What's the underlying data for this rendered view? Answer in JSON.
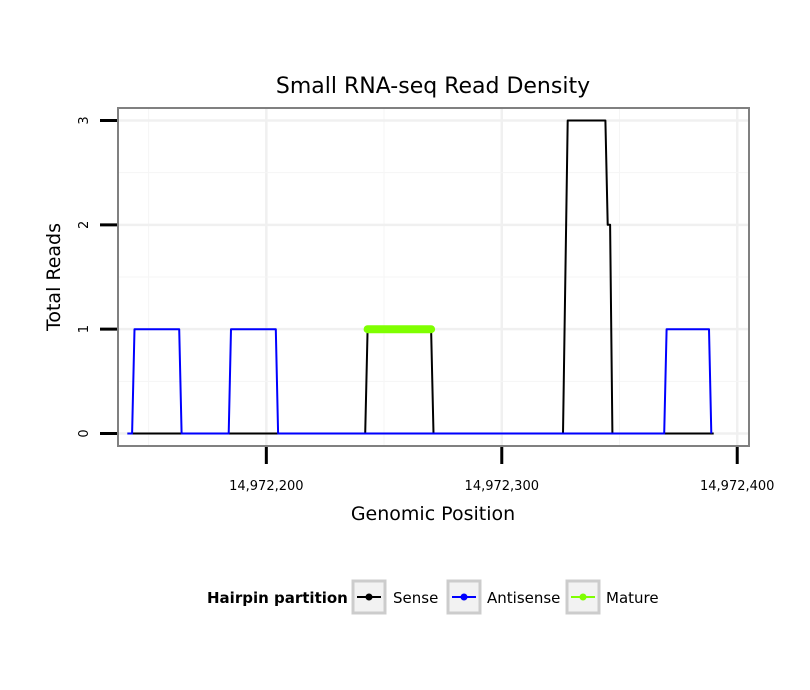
{
  "chart_data": {
    "type": "line",
    "title": "Small RNA-seq Read Density",
    "xlabel": "Genomic Position",
    "ylabel": "Total Reads",
    "xlim": [
      14972137,
      14972405
    ],
    "ylim": [
      -0.12,
      3.12
    ],
    "xticks": [
      14972200,
      14972300,
      14972400
    ],
    "xtick_labels": [
      "14,972,200",
      "14,972,300",
      "14,972,400"
    ],
    "yticks": [
      0,
      1,
      2,
      3
    ],
    "ytick_labels": [
      "0",
      "1",
      "2",
      "3"
    ],
    "grid": true,
    "legend": {
      "title": "Hairpin partition",
      "position": "bottom",
      "entries": [
        "Sense",
        "Antisense",
        "Mature"
      ]
    },
    "series": [
      {
        "name": "Sense",
        "color": "#000000",
        "x": [
          14972141,
          14972242,
          14972243,
          14972270,
          14972271,
          14972326,
          14972328,
          14972344,
          14972345,
          14972346,
          14972347,
          14972390
        ],
        "y": [
          0,
          0,
          1,
          1,
          0,
          0,
          3,
          3,
          2,
          2,
          0,
          0
        ]
      },
      {
        "name": "Antisense",
        "color": "#0000ff",
        "x": [
          14972141,
          14972143,
          14972144,
          14972163,
          14972164,
          14972184,
          14972185,
          14972204,
          14972205,
          14972369,
          14972370,
          14972388,
          14972389
        ],
        "y": [
          0,
          0,
          1,
          1,
          0,
          0,
          1,
          1,
          0,
          0,
          1,
          1,
          0
        ]
      },
      {
        "name": "Mature",
        "color": "#7fff00",
        "x": [
          14972243,
          14972270
        ],
        "y": [
          1,
          1
        ]
      }
    ]
  }
}
